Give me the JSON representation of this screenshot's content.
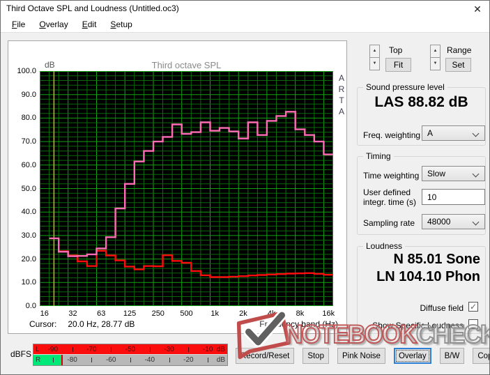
{
  "window": {
    "title": "Third Octave SPL and Loudness (Untitled.oc3)",
    "close_glyph": "✕"
  },
  "menu": {
    "items": [
      {
        "key": "F",
        "rest": "ile"
      },
      {
        "key": "O",
        "rest": "verlay"
      },
      {
        "key": "E",
        "rest": "dit"
      },
      {
        "key": "S",
        "rest": "etup"
      }
    ]
  },
  "chart": {
    "unit_label": "dB",
    "title": "Third octave SPL",
    "side_label": "ARTA",
    "cursor_label": "Cursor:",
    "cursor_value": "20.0 Hz, 28.77 dB",
    "x_axis_label": "Frequency band (Hz)",
    "colors": {
      "background": "#000000",
      "grid_minor": "#0b6b0b",
      "grid_major": "#12a312",
      "pink_series": "#ff6cb5",
      "red_series": "#fb0d0d",
      "cursor_line": "#c9b714"
    }
  },
  "chart_data": {
    "type": "line",
    "subtype": "stepped-third-octave-bands",
    "title": "Third octave SPL",
    "ylabel": "dB",
    "xlabel": "Frequency band (Hz)",
    "ylim": [
      0,
      100
    ],
    "ytick_step": 10,
    "ytick_labels": [
      "100.0",
      "90.0",
      "80.0",
      "70.0",
      "60.0",
      "50.0",
      "40.0",
      "30.0",
      "20.0",
      "10.0",
      "0.0"
    ],
    "grid": "on",
    "categories": [
      "16",
      "20",
      "25",
      "31.5",
      "40",
      "50",
      "63",
      "80",
      "100",
      "125",
      "160",
      "200",
      "250",
      "315",
      "400",
      "500",
      "630",
      "800",
      "1k",
      "1.25k",
      "1.6k",
      "2k",
      "2.5k",
      "3.15k",
      "4k",
      "5k",
      "6.3k",
      "8k",
      "10k",
      "12.5k",
      "16k"
    ],
    "xtick_labels": [
      "16",
      "32",
      "63",
      "125",
      "250",
      "500",
      "1k",
      "2k",
      "4k",
      "8k",
      "16k"
    ],
    "xtick_band_indices": [
      0,
      3,
      6,
      9,
      12,
      15,
      18,
      21,
      24,
      27,
      30
    ],
    "series": [
      {
        "name": "SPL curve (pink)",
        "color": "#ff6cb5",
        "values": [
          null,
          28.8,
          23.1,
          21.2,
          21.3,
          22.0,
          24.5,
          29.3,
          41.5,
          52.0,
          61.5,
          66.0,
          70.0,
          72.0,
          77.3,
          73.3,
          74.0,
          78.2,
          74.6,
          75.8,
          74.3,
          71.3,
          78.2,
          72.8,
          78.8,
          80.9,
          82.7,
          75.2,
          72.8,
          70.0,
          64.5
        ]
      },
      {
        "name": "Overlay curve (red)",
        "color": "#fb0d0d",
        "values": [
          null,
          null,
          23.3,
          21.5,
          19.0,
          17.0,
          23.5,
          21.5,
          19.4,
          16.8,
          15.6,
          17.0,
          16.9,
          21.6,
          19.2,
          18.4,
          14.9,
          13.1,
          12.3,
          12.3,
          12.5,
          12.7,
          13.0,
          13.2,
          13.4,
          13.6,
          13.8,
          13.9,
          14.0,
          13.7,
          13.3
        ]
      }
    ],
    "cursor": {
      "band": "20",
      "frequency_hz": 20.0,
      "value_db": 28.77
    }
  },
  "scale_controls": {
    "top_label": "Top",
    "fit_button": "Fit",
    "range_label": "Range",
    "set_button": "Set",
    "spin_up_glyph": "▲",
    "spin_down_glyph": "▼"
  },
  "spl_group": {
    "title": "Sound pressure level",
    "value": "LAS 88.82 dB",
    "freq_weighting_label": "Freq. weighting",
    "freq_weighting_value": "A"
  },
  "timing_group": {
    "title": "Timing",
    "time_weighting_label": "Time weighting",
    "time_weighting_value": "Slow",
    "integr_label_line1": "User defined",
    "integr_label_line2": "integr. time (s)",
    "integr_time_value": "10",
    "sampling_rate_label": "Sampling rate",
    "sampling_rate_value": "48000"
  },
  "loudness_group": {
    "title": "Loudness",
    "n_value": "N 85.01 Sone",
    "ln_value": "LN 104.10 Phon",
    "diffuse_label": "Diffuse field",
    "diffuse_checked": true,
    "show_specific_label": "Show Specific Loudness",
    "show_specific_checked": false,
    "check_glyph": "✓"
  },
  "meter": {
    "label": "dBFS",
    "unit": "dB",
    "range_db": [
      -100,
      0
    ],
    "rows": [
      {
        "channel": "L",
        "level_db": 0,
        "bar_color": "#fb0d0d",
        "peak_color": null,
        "number_labels": [
          -90,
          -70,
          -50,
          -30,
          -10
        ],
        "tick_marks": [
          -80,
          -60,
          -40,
          -20
        ]
      },
      {
        "channel": "R",
        "level_db": -85.5,
        "bar_color": "#00e878",
        "peak_color": "#d40000",
        "number_labels": [
          -80,
          -60,
          -40,
          -20
        ],
        "tick_marks": [
          -90,
          -70,
          -50,
          -30,
          -10
        ]
      }
    ]
  },
  "buttons": [
    {
      "label": "Record/Reset",
      "focused": false
    },
    {
      "label": "Stop",
      "focused": false
    },
    {
      "label": "Pink Noise",
      "focused": false
    },
    {
      "label": "Overlay",
      "focused": true
    },
    {
      "label": "B/W",
      "focused": false
    },
    {
      "label": "Copy",
      "focused": false
    }
  ],
  "watermark": {
    "brand_primary": "NOTEBOOK",
    "brand_secondary": "CHECK"
  }
}
